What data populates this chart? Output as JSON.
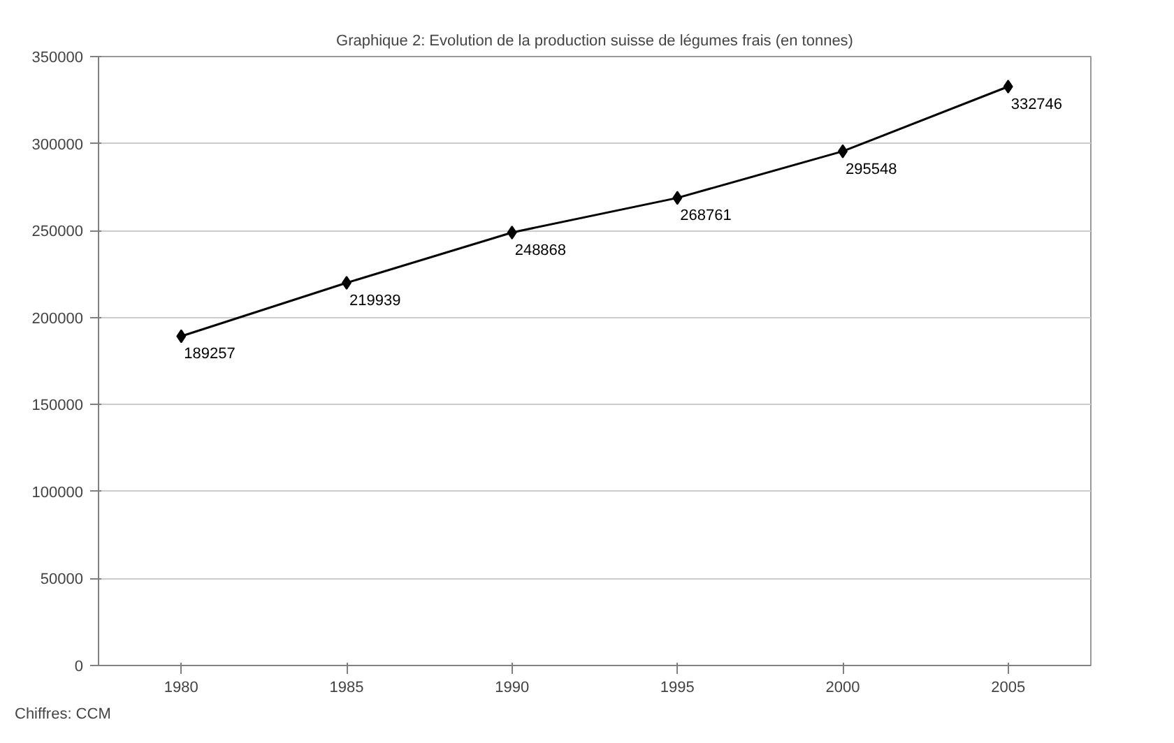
{
  "chart_data": {
    "type": "line",
    "title": "Graphique 2: Evolution de la production suisse de légumes frais (en tonnes)",
    "categories": [
      "1980",
      "1985",
      "1990",
      "1995",
      "2000",
      "2005"
    ],
    "series": [
      {
        "color": "#000000",
        "values": [
          189257,
          219939,
          248868,
          268761,
          295548,
          332746
        ]
      }
    ],
    "ylim": [
      0,
      350000
    ],
    "yticks": [
      0,
      50000,
      100000,
      150000,
      200000,
      250000,
      300000,
      350000
    ],
    "grid": "y",
    "marker": "diamond",
    "line_style": "solid",
    "data_labels": true,
    "annotations": [
      "Chiffres: CCM"
    ]
  }
}
